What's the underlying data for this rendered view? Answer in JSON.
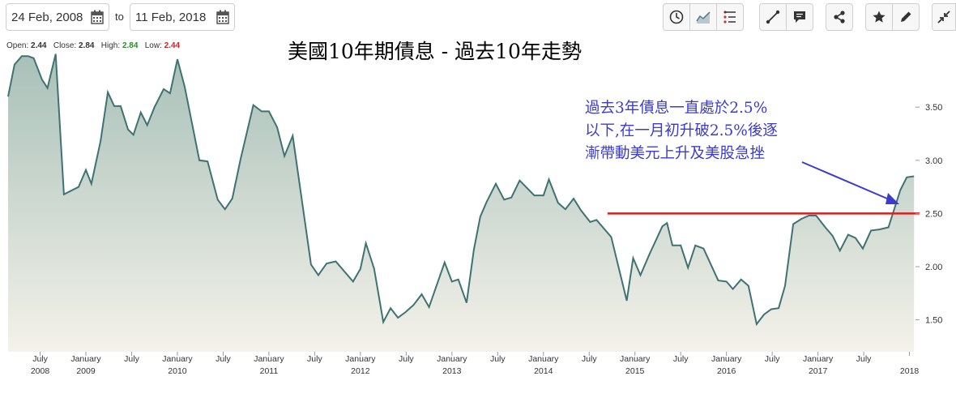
{
  "toolbar": {
    "start_date": "24 Feb, 2008",
    "to_label": "to",
    "end_date": "11 Feb, 2018",
    "buttons": [
      "clock-icon",
      "line-chart-icon",
      "indicators-icon",
      "draw-line-icon",
      "comment-icon",
      "share-icon",
      "star-icon",
      "pencil-icon",
      "collapse-icon"
    ]
  },
  "stats": {
    "open_label": "Open:",
    "open": "2.44",
    "close_label": "Close:",
    "close": "2.84",
    "high_label": "High:",
    "high": "2.84",
    "low_label": "Low:",
    "low": "2.44",
    "colors": {
      "high": "#2e8b2e",
      "low": "#c62828"
    }
  },
  "title": "美國10年期債息 - 過去10年走勢",
  "annotation": {
    "lines": [
      "過去3年債息一直處於2.5%",
      "以下,在一月初升破2.5%後逐",
      "漸帶動美元上升及美股急挫"
    ],
    "color": "#3b3bd0"
  },
  "chart_data": {
    "type": "area",
    "title": "美國10年期債息 - 過去10年走勢",
    "xlabel": "",
    "ylabel": "",
    "yticks": [
      "1.50",
      "2.00",
      "2.50",
      "3.00",
      "3.50"
    ],
    "ylim": [
      1.2,
      4.05
    ],
    "xlim": [
      2008.15,
      2018.11
    ],
    "xticks": [
      {
        "label": "July",
        "year": "2008",
        "x": 2008.5
      },
      {
        "label": "January",
        "year": "2009",
        "x": 2009.0
      },
      {
        "label": "July",
        "year": "",
        "x": 2009.5
      },
      {
        "label": "January",
        "year": "2010",
        "x": 2010.0
      },
      {
        "label": "July",
        "year": "",
        "x": 2010.5
      },
      {
        "label": "January",
        "year": "2011",
        "x": 2011.0
      },
      {
        "label": "July",
        "year": "",
        "x": 2011.5
      },
      {
        "label": "January",
        "year": "2012",
        "x": 2012.0
      },
      {
        "label": "July",
        "year": "",
        "x": 2012.5
      },
      {
        "label": "January",
        "year": "2013",
        "x": 2013.0
      },
      {
        "label": "July",
        "year": "",
        "x": 2013.5
      },
      {
        "label": "January",
        "year": "2014",
        "x": 2014.0
      },
      {
        "label": "July",
        "year": "",
        "x": 2014.5
      },
      {
        "label": "January",
        "year": "2015",
        "x": 2015.0
      },
      {
        "label": "July",
        "year": "",
        "x": 2015.5
      },
      {
        "label": "January",
        "year": "2016",
        "x": 2016.0
      },
      {
        "label": "July",
        "year": "",
        "x": 2016.5
      },
      {
        "label": "January",
        "year": "2017",
        "x": 2017.0
      },
      {
        "label": "July",
        "year": "",
        "x": 2017.5
      },
      {
        "label": "",
        "year": "2018",
        "x": 2018.0
      }
    ],
    "series": [
      {
        "color": "#3f7272",
        "fill_top": "#a8c0b8",
        "fill_bottom": "#f4f2ea",
        "points": [
          [
            2008.15,
            3.6
          ],
          [
            2008.22,
            3.9
          ],
          [
            2008.3,
            3.98
          ],
          [
            2008.37,
            3.98
          ],
          [
            2008.43,
            3.96
          ],
          [
            2008.52,
            3.76
          ],
          [
            2008.58,
            3.68
          ],
          [
            2008.67,
            4.0
          ],
          [
            2008.76,
            2.68
          ],
          [
            2008.92,
            2.75
          ],
          [
            2009.0,
            2.91
          ],
          [
            2009.06,
            2.78
          ],
          [
            2009.16,
            3.18
          ],
          [
            2009.24,
            3.64
          ],
          [
            2009.31,
            3.51
          ],
          [
            2009.38,
            3.51
          ],
          [
            2009.46,
            3.29
          ],
          [
            2009.52,
            3.24
          ],
          [
            2009.6,
            3.45
          ],
          [
            2009.67,
            3.33
          ],
          [
            2009.75,
            3.5
          ],
          [
            2009.85,
            3.67
          ],
          [
            2009.92,
            3.63
          ],
          [
            2010.0,
            3.95
          ],
          [
            2010.08,
            3.69
          ],
          [
            2010.24,
            3.0
          ],
          [
            2010.33,
            2.99
          ],
          [
            2010.44,
            2.63
          ],
          [
            2010.52,
            2.54
          ],
          [
            2010.6,
            2.64
          ],
          [
            2010.69,
            3.01
          ],
          [
            2010.83,
            3.52
          ],
          [
            2010.92,
            3.46
          ],
          [
            2011.0,
            3.46
          ],
          [
            2011.09,
            3.31
          ],
          [
            2011.17,
            3.04
          ],
          [
            2011.26,
            3.23
          ],
          [
            2011.46,
            2.02
          ],
          [
            2011.54,
            1.92
          ],
          [
            2011.63,
            2.03
          ],
          [
            2011.73,
            2.05
          ],
          [
            2011.92,
            1.86
          ],
          [
            2012.0,
            1.98
          ],
          [
            2012.06,
            2.22
          ],
          [
            2012.15,
            1.98
          ],
          [
            2012.25,
            1.48
          ],
          [
            2012.33,
            1.61
          ],
          [
            2012.41,
            1.52
          ],
          [
            2012.49,
            1.57
          ],
          [
            2012.58,
            1.64
          ],
          [
            2012.67,
            1.74
          ],
          [
            2012.75,
            1.62
          ],
          [
            2012.92,
            2.04
          ],
          [
            2013.0,
            1.86
          ],
          [
            2013.07,
            1.88
          ],
          [
            2013.16,
            1.66
          ],
          [
            2013.24,
            2.16
          ],
          [
            2013.31,
            2.47
          ],
          [
            2013.38,
            2.61
          ],
          [
            2013.48,
            2.78
          ],
          [
            2013.57,
            2.63
          ],
          [
            2013.65,
            2.65
          ],
          [
            2013.74,
            2.81
          ],
          [
            2013.9,
            2.67
          ],
          [
            2014.0,
            2.67
          ],
          [
            2014.06,
            2.82
          ],
          [
            2014.16,
            2.6
          ],
          [
            2014.24,
            2.54
          ],
          [
            2014.33,
            2.64
          ],
          [
            2014.41,
            2.53
          ],
          [
            2014.51,
            2.42
          ],
          [
            2014.58,
            2.44
          ],
          [
            2014.67,
            2.35
          ],
          [
            2014.74,
            2.28
          ],
          [
            2014.91,
            1.68
          ],
          [
            2014.98,
            2.08
          ],
          [
            2015.06,
            1.92
          ],
          [
            2015.16,
            2.12
          ],
          [
            2015.3,
            2.38
          ],
          [
            2015.35,
            2.41
          ],
          [
            2015.41,
            2.2
          ],
          [
            2015.5,
            2.2
          ],
          [
            2015.58,
            1.99
          ],
          [
            2015.66,
            2.2
          ],
          [
            2015.75,
            2.17
          ],
          [
            2015.91,
            1.87
          ],
          [
            2016.0,
            1.86
          ],
          [
            2016.07,
            1.79
          ],
          [
            2016.16,
            1.88
          ],
          [
            2016.24,
            1.82
          ],
          [
            2016.33,
            1.46
          ],
          [
            2016.41,
            1.55
          ],
          [
            2016.49,
            1.6
          ],
          [
            2016.57,
            1.61
          ],
          [
            2016.64,
            1.82
          ],
          [
            2016.73,
            2.4
          ],
          [
            2016.82,
            2.45
          ],
          [
            2016.9,
            2.48
          ],
          [
            2016.98,
            2.48
          ],
          [
            2017.08,
            2.37
          ],
          [
            2017.16,
            2.29
          ],
          [
            2017.24,
            2.15
          ],
          [
            2017.33,
            2.3
          ],
          [
            2017.41,
            2.27
          ],
          [
            2017.49,
            2.17
          ],
          [
            2017.58,
            2.34
          ],
          [
            2017.67,
            2.35
          ],
          [
            2017.77,
            2.37
          ],
          [
            2017.9,
            2.72
          ],
          [
            2017.97,
            2.84
          ],
          [
            2018.05,
            2.85
          ]
        ]
      }
    ],
    "reference_line": {
      "y": 2.5,
      "x_start": 2014.7,
      "x_end": 2018.11,
      "color": "#d42020"
    },
    "grid": false
  }
}
